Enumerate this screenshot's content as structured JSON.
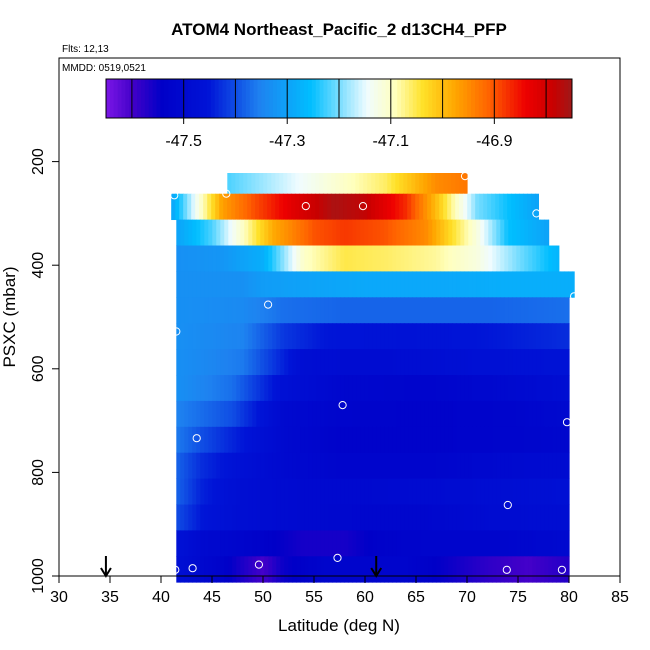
{
  "chart_data": {
    "type": "heatmap",
    "title": "ATOM4 Northeast_Pacific_2 d13CH4_PFP",
    "annotations": {
      "flights": "Flts: 12,13",
      "dates": "MMDD: 0519,0521"
    },
    "xlabel": "Latitude (deg N)",
    "ylabel": "PSXC (mbar)",
    "xlim": [
      30,
      85
    ],
    "ylim": [
      1000,
      0
    ],
    "x_ticks": [
      "30",
      "35",
      "40",
      "45",
      "50",
      "55",
      "60",
      "65",
      "70",
      "75",
      "80",
      "85"
    ],
    "y_ticks": [
      "200",
      "400",
      "600",
      "800",
      "1000"
    ],
    "colorbar": {
      "range": [
        -47.65,
        -46.75
      ],
      "ticks": [
        "-47.5",
        "-47.3",
        "-47.1",
        "-46.9"
      ],
      "tick_values": [
        -47.5,
        -47.3,
        -47.1,
        -46.9
      ]
    },
    "layers": [
      {
        "p": 222,
        "x0": 46.5,
        "x1": 70,
        "nodes": [
          [
            46.5,
            -47.22
          ],
          [
            55,
            -47.13
          ],
          [
            62,
            -47.06
          ],
          [
            67,
            -46.95
          ],
          [
            70,
            -46.93
          ]
        ]
      },
      {
        "p": 262,
        "x0": 41,
        "x1": 77,
        "nodes": [
          [
            41,
            -47.3
          ],
          [
            44,
            -47.1
          ],
          [
            46,
            -46.97
          ],
          [
            49,
            -46.9
          ],
          [
            53,
            -46.82
          ],
          [
            57,
            -46.76
          ],
          [
            60,
            -46.78
          ],
          [
            64,
            -46.87
          ],
          [
            67,
            -47.0
          ],
          [
            71,
            -47.2
          ],
          [
            77,
            -47.3
          ]
        ]
      },
      {
        "p": 312,
        "x0": 41.5,
        "x1": 78,
        "nodes": [
          [
            41.5,
            -47.3
          ],
          [
            45,
            -47.22
          ],
          [
            48,
            -47.1
          ],
          [
            51,
            -46.98
          ],
          [
            55,
            -46.9
          ],
          [
            58,
            -46.88
          ],
          [
            62,
            -46.9
          ],
          [
            66,
            -46.95
          ],
          [
            71,
            -47.12
          ],
          [
            74,
            -47.25
          ],
          [
            78,
            -47.3
          ]
        ]
      },
      {
        "p": 362,
        "x0": 41.5,
        "x1": 79,
        "nodes": [
          [
            41.5,
            -47.33
          ],
          [
            46,
            -47.32
          ],
          [
            50,
            -47.28
          ],
          [
            54,
            -47.1
          ],
          [
            58,
            -47.05
          ],
          [
            62,
            -47.06
          ],
          [
            67,
            -47.08
          ],
          [
            71,
            -47.12
          ],
          [
            75,
            -47.2
          ],
          [
            79,
            -47.27
          ]
        ]
      },
      {
        "p": 412,
        "x0": 41.5,
        "x1": 80.5,
        "nodes": [
          [
            41.5,
            -47.33
          ],
          [
            48,
            -47.33
          ],
          [
            50,
            -47.31
          ],
          [
            54,
            -47.3
          ],
          [
            60,
            -47.29
          ],
          [
            68,
            -47.29
          ],
          [
            74,
            -47.28
          ],
          [
            80.5,
            -47.28
          ]
        ]
      },
      {
        "p": 462,
        "x0": 41.5,
        "x1": 80,
        "nodes": [
          [
            41.5,
            -47.33
          ],
          [
            48,
            -47.34
          ],
          [
            52,
            -47.37
          ],
          [
            58,
            -47.38
          ],
          [
            64,
            -47.38
          ],
          [
            72,
            -47.38
          ],
          [
            80,
            -47.37
          ]
        ]
      },
      {
        "p": 512,
        "x0": 41.5,
        "x1": 80,
        "nodes": [
          [
            41.5,
            -47.33
          ],
          [
            48,
            -47.35
          ],
          [
            52,
            -47.42
          ],
          [
            56,
            -47.45
          ],
          [
            64,
            -47.46
          ],
          [
            72,
            -47.45
          ],
          [
            80,
            -47.43
          ]
        ]
      },
      {
        "p": 562,
        "x0": 41.5,
        "x1": 80,
        "nodes": [
          [
            41.5,
            -47.33
          ],
          [
            48,
            -47.36
          ],
          [
            54,
            -47.48
          ],
          [
            60,
            -47.49
          ],
          [
            66,
            -47.48
          ],
          [
            72,
            -47.47
          ],
          [
            80,
            -47.46
          ]
        ]
      },
      {
        "p": 612,
        "x0": 41.5,
        "x1": 80,
        "nodes": [
          [
            41.5,
            -47.33
          ],
          [
            47,
            -47.37
          ],
          [
            52,
            -47.47
          ],
          [
            58,
            -47.51
          ],
          [
            66,
            -47.52
          ],
          [
            74,
            -47.5
          ],
          [
            80,
            -47.48
          ]
        ]
      },
      {
        "p": 662,
        "x0": 41.5,
        "x1": 80,
        "nodes": [
          [
            41.5,
            -47.35
          ],
          [
            47,
            -47.4
          ],
          [
            52,
            -47.5
          ],
          [
            58,
            -47.52
          ],
          [
            66,
            -47.53
          ],
          [
            74,
            -47.52
          ],
          [
            80,
            -47.5
          ]
        ]
      },
      {
        "p": 712,
        "x0": 41.5,
        "x1": 80,
        "nodes": [
          [
            41.5,
            -47.36
          ],
          [
            44,
            -47.4
          ],
          [
            48,
            -47.45
          ],
          [
            52,
            -47.5
          ],
          [
            58,
            -47.53
          ],
          [
            66,
            -47.53
          ],
          [
            74,
            -47.52
          ],
          [
            80,
            -47.51
          ]
        ]
      },
      {
        "p": 762,
        "x0": 41.5,
        "x1": 80,
        "nodes": [
          [
            41.5,
            -47.38
          ],
          [
            44,
            -47.43
          ],
          [
            48,
            -47.47
          ],
          [
            52,
            -47.5
          ],
          [
            58,
            -47.52
          ],
          [
            66,
            -47.52
          ],
          [
            74,
            -47.5
          ],
          [
            80,
            -47.49
          ]
        ]
      },
      {
        "p": 812,
        "x0": 41.5,
        "x1": 80,
        "nodes": [
          [
            41.5,
            -47.38
          ],
          [
            44,
            -47.44
          ],
          [
            48,
            -47.48
          ],
          [
            54,
            -47.5
          ],
          [
            60,
            -47.5
          ],
          [
            68,
            -47.49
          ],
          [
            74,
            -47.48
          ],
          [
            80,
            -47.47
          ]
        ]
      },
      {
        "p": 862,
        "x0": 41.5,
        "x1": 80,
        "nodes": [
          [
            41.5,
            -47.4
          ],
          [
            44,
            -47.45
          ],
          [
            48,
            -47.48
          ],
          [
            54,
            -47.5
          ],
          [
            60,
            -47.51
          ],
          [
            66,
            -47.51
          ],
          [
            72,
            -47.49
          ],
          [
            80,
            -47.48
          ]
        ]
      },
      {
        "p": 912,
        "x0": 41.5,
        "x1": 80,
        "nodes": [
          [
            41.5,
            -47.46
          ],
          [
            44,
            -47.5
          ],
          [
            48,
            -47.52
          ],
          [
            54,
            -47.56
          ],
          [
            58,
            -47.56
          ],
          [
            62,
            -47.53
          ],
          [
            66,
            -47.52
          ],
          [
            72,
            -47.52
          ],
          [
            80,
            -47.5
          ]
        ]
      },
      {
        "p": 962,
        "x0": 41.5,
        "x1": 80,
        "nodes": [
          [
            41.5,
            -47.47
          ],
          [
            46,
            -47.53
          ],
          [
            50,
            -47.6
          ],
          [
            52,
            -47.55
          ],
          [
            56,
            -47.52
          ],
          [
            60,
            -47.52
          ],
          [
            64,
            -47.52
          ],
          [
            68,
            -47.55
          ],
          [
            72,
            -47.58
          ],
          [
            76,
            -47.6
          ],
          [
            80,
            -47.57
          ]
        ]
      }
    ],
    "samples": [
      [
        41.3,
        265
      ],
      [
        46.4,
        262
      ],
      [
        54.2,
        286
      ],
      [
        59.8,
        286
      ],
      [
        69.8,
        228
      ],
      [
        76.8,
        300
      ],
      [
        80.5,
        460
      ],
      [
        41.5,
        528
      ],
      [
        50.5,
        476
      ],
      [
        57.8,
        670
      ],
      [
        43.5,
        734
      ],
      [
        79.8,
        703
      ],
      [
        74.0,
        863
      ],
      [
        41.4,
        988
      ],
      [
        43.1,
        985
      ],
      [
        49.6,
        978
      ],
      [
        57.3,
        965
      ],
      [
        73.9,
        988
      ],
      [
        79.3,
        988
      ]
    ],
    "flight_markers": [
      34.6,
      61.1
    ]
  }
}
